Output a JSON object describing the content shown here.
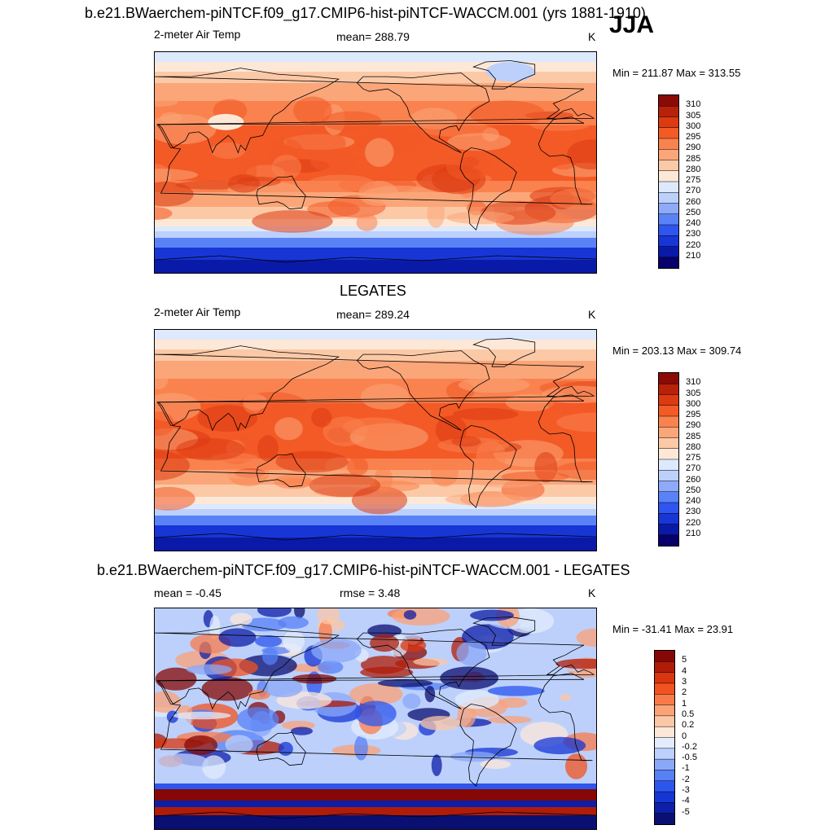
{
  "season": "JJA",
  "panels": [
    {
      "title": "b.e21.BWaerchem-piNTCF.f09_g17.CMIP6-hist-piNTCF-WACCM.001 (yrs 1881-1910)",
      "left_label": "2-meter Air Temp",
      "center_label": "mean= 288.79",
      "units": "K",
      "minmax": "Min = 211.87 Max = 313.55",
      "colorbar_labels": [
        "310",
        "305",
        "300",
        "295",
        "290",
        "285",
        "280",
        "275",
        "270",
        "260",
        "250",
        "240",
        "230",
        "220",
        "210"
      ]
    },
    {
      "title": "LEGATES",
      "left_label": "2-meter Air Temp",
      "center_label": "mean= 289.24",
      "units": "K",
      "minmax": "Min = 203.13 Max = 309.74",
      "colorbar_labels": [
        "310",
        "305",
        "300",
        "295",
        "290",
        "285",
        "280",
        "275",
        "270",
        "260",
        "250",
        "240",
        "230",
        "220",
        "210"
      ]
    },
    {
      "title": "b.e21.BWaerchem-piNTCF.f09_g17.CMIP6-hist-piNTCF-WACCM.001 - LEGATES",
      "left_label": "mean =  -0.45",
      "center_label": "rmse =   3.48",
      "units": "K",
      "minmax": "Min = -31.41 Max =  23.91",
      "colorbar_labels": [
        "5",
        "4",
        "3",
        "2",
        "1",
        "0.5",
        "0.2",
        "0",
        "-0.2",
        "-0.5",
        "-1",
        "-2",
        "-3",
        "-4",
        "-5"
      ]
    }
  ],
  "palette_abs": [
    "#08006b",
    "#0a1aa8",
    "#1836d6",
    "#2f55f0",
    "#5a82f7",
    "#8eaafa",
    "#bcd0fb",
    "#dde9fd",
    "#fde8d7",
    "#fcc9a7",
    "#fba679",
    "#f9824f",
    "#f35a26",
    "#dd3a12",
    "#b8210a",
    "#8a0a06"
  ],
  "palette_diff": [
    "#0a0f72",
    "#0d1ea8",
    "#1636d4",
    "#2c56ee",
    "#5780f5",
    "#8ba8f8",
    "#bcd0fb",
    "#e2ecfd",
    "#fde7d9",
    "#fcc7a6",
    "#fba277",
    "#f97b4a",
    "#f1531f",
    "#d83510",
    "#b01c08",
    "#860806"
  ]
}
